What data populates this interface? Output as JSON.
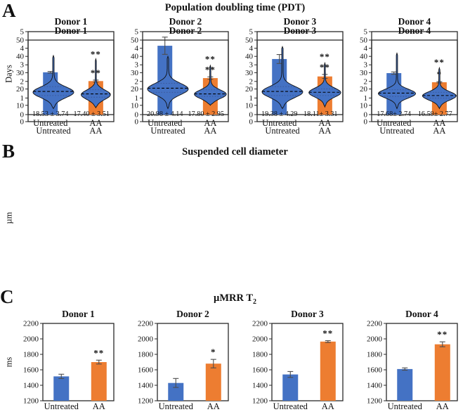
{
  "figure": {
    "series_colors": [
      "#4472C4",
      "#ED7D31"
    ],
    "text_color": "#111111",
    "background": "#ffffff"
  },
  "chart_data": [
    {
      "type": "bar",
      "panel": "A",
      "title": "Population doubling time (PDT)",
      "ylabel": "Days",
      "ylim": [
        0,
        5
      ],
      "yticks": [
        0,
        1,
        2,
        3,
        4,
        5
      ],
      "categories": [
        "Untreated",
        "AA"
      ],
      "legend": "none",
      "grid": false,
      "subplots": [
        {
          "title": "Donor 1",
          "values": [
            2.55,
            2.02
          ],
          "errors": [
            0.05,
            0.06
          ],
          "sig": "**"
        },
        {
          "title": "Donor 2",
          "values": [
            4.15,
            2.2
          ],
          "errors": [
            0.52,
            0.07
          ],
          "sig": "**"
        },
        {
          "title": "Donor 3",
          "values": [
            3.35,
            2.3
          ],
          "errors": [
            0.27,
            0.12
          ],
          "sig": "**"
        },
        {
          "title": "Donor 4",
          "values": [
            2.5,
            1.95
          ],
          "errors": [
            0.07,
            0.04
          ],
          "sig": "*"
        }
      ]
    },
    {
      "type": "violin",
      "panel": "B",
      "title": "Suspended cell diameter",
      "ylabel": "µm",
      "ylim": [
        0,
        50
      ],
      "yticks": [
        0,
        10,
        20,
        30,
        40,
        50
      ],
      "categories": [
        "Untreated",
        "AA"
      ],
      "legend": "none",
      "grid": false,
      "subplots": [
        {
          "title": "Donor 1",
          "sig": "**",
          "sig_y": 39.5,
          "violins": [
            {
              "label": "18.53 ± 3.74",
              "min": 8,
              "max": 40.5,
              "median": 18.5,
              "q1": 16,
              "q3": 21.5,
              "mode": 18,
              "s": 3.3,
              "w": 0.46
            },
            {
              "label": "17.40 ± 3.51",
              "min": 8.5,
              "max": 38.5,
              "median": 17,
              "q1": 15,
              "q3": 19.5,
              "mode": 16.5,
              "s": 2.9,
              "w": 0.33
            }
          ]
        },
        {
          "title": "Donor 2",
          "sig": "**",
          "sig_y": 36.5,
          "violins": [
            {
              "label": "20.98 ± 4.14",
              "min": 8,
              "max": 40,
              "median": 20.5,
              "q1": 18,
              "q3": 23.5,
              "mode": 20,
              "s": 3.5,
              "w": 0.46
            },
            {
              "label": "17.80 ± 2.95",
              "min": 10,
              "max": 34.5,
              "median": 17,
              "q1": 15.5,
              "q3": 19.5,
              "mode": 16.8,
              "s": 2.7,
              "w": 0.36
            }
          ]
        },
        {
          "title": "Donor 3",
          "sig": "**",
          "sig_y": 38,
          "violins": [
            {
              "label": "19.38 ± 4.29",
              "min": 8,
              "max": 46,
              "median": 18.5,
              "q1": 16,
              "q3": 21.5,
              "mode": 18.2,
              "s": 3.4,
              "w": 0.46
            },
            {
              "label": "18.11± 3.31",
              "min": 9,
              "max": 36,
              "median": 18,
              "q1": 16,
              "q3": 20,
              "mode": 17.8,
              "s": 2.8,
              "w": 0.36
            }
          ]
        },
        {
          "title": "Donor 4",
          "sig": "**",
          "sig_y": 34.5,
          "violins": [
            {
              "label": "17.68± 2.74",
              "min": 8,
              "max": 42,
              "median": 17.5,
              "q1": 15.5,
              "q3": 19.5,
              "mode": 17.2,
              "s": 2.7,
              "w": 0.42
            },
            {
              "label": "16.59± 2.77",
              "min": 8,
              "max": 33,
              "median": 16,
              "q1": 14.5,
              "q3": 18,
              "mode": 15.8,
              "s": 2.6,
              "w": 0.38
            }
          ]
        }
      ]
    },
    {
      "type": "bar",
      "panel": "C",
      "title": "µMRR T",
      "title_sub": "2",
      "ylabel": "ms",
      "ylim": [
        1200,
        2200
      ],
      "yticks": [
        1200,
        1400,
        1600,
        1800,
        2000,
        2200
      ],
      "categories": [
        "Untreated",
        "AA"
      ],
      "legend": "none",
      "grid": false,
      "subplots": [
        {
          "title": "Donor 1",
          "values": [
            1515,
            1700
          ],
          "errors": [
            28,
            25
          ],
          "sig": "**"
        },
        {
          "title": "Donor 2",
          "values": [
            1430,
            1680
          ],
          "errors": [
            58,
            55
          ],
          "sig": "*"
        },
        {
          "title": "Donor 3",
          "values": [
            1540,
            1965
          ],
          "errors": [
            38,
            12
          ],
          "sig": "**"
        },
        {
          "title": "Donor 4",
          "values": [
            1610,
            1930
          ],
          "errors": [
            15,
            32
          ],
          "sig": "**"
        }
      ]
    }
  ]
}
